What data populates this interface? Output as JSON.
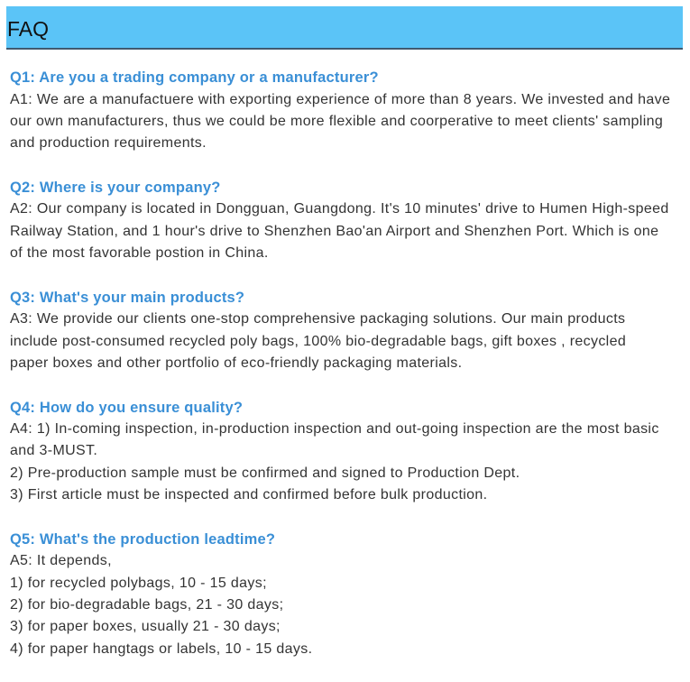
{
  "header": {
    "title": "FAQ"
  },
  "faq": [
    {
      "q": "Q1: Are you a trading company or a manufacturer?",
      "a": [
        "A1: We are a manufactuere with exporting experience of more than 8 years. We invested and have",
        "our own manufacturers, thus we could be more flexible and coorperative to meet clients' sampling",
        "and production requirements."
      ]
    },
    {
      "q": "Q2: Where is your company?",
      "a": [
        "A2: Our company is located in Dongguan, Guangdong. It's 10 minutes' drive to Humen High-speed",
        "Railway Station, and 1 hour's drive to Shenzhen Bao'an Airport and Shenzhen Port. Which is one",
        "of the most favorable postion in China."
      ]
    },
    {
      "q": "Q3: What's your main products?",
      "a": [
        "A3: We provide our clients one-stop comprehensive packaging solutions. Our main products",
        "include post-consumed recycled poly bags, 100% bio-degradable bags, gift boxes , recycled",
        "paper boxes and other portfolio of eco-friendly packaging materials."
      ]
    },
    {
      "q": "Q4: How do you ensure quality?",
      "a": [
        "A4: 1) In-coming inspection, in-production inspection and out-going inspection are the most basic",
        "and 3-MUST.",
        "2) Pre-production sample must be confirmed and signed to Production Dept.",
        "3) First article must be inspected and confirmed before bulk production."
      ]
    },
    {
      "q": "Q5: What's the production leadtime?",
      "a": [
        "A5: It depends,",
        "1) for recycled polybags, 10 - 15 days;",
        "2) for bio-degradable bags, 21 - 30 days;",
        "3) for paper boxes, usually 21 - 30 days;",
        "4) for paper hangtags or labels, 10 - 15 days."
      ]
    }
  ]
}
